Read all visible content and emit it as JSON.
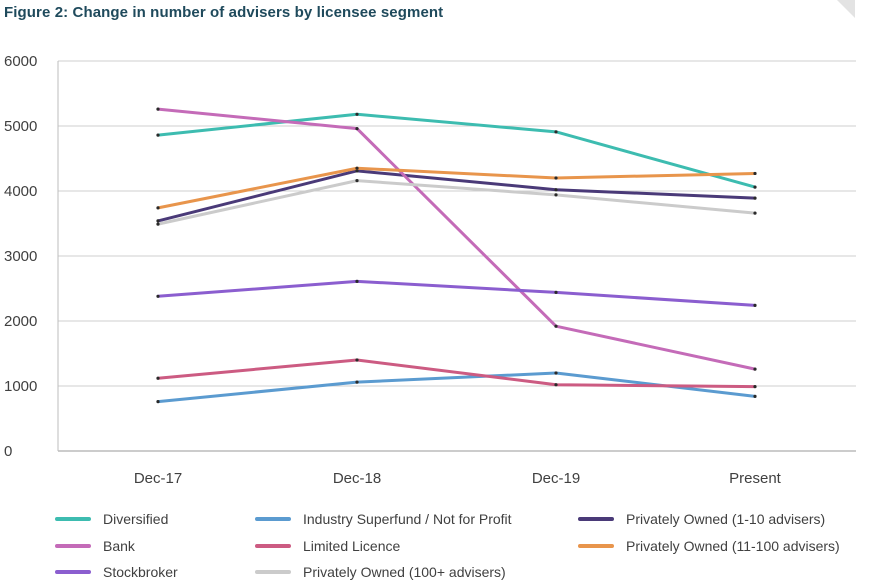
{
  "figure": {
    "title": "Figure 2: Change in number of advisers by licensee segment"
  },
  "chart_data": {
    "type": "line",
    "title": "Figure 2: Change in number of advisers by licensee segment",
    "xlabel": "",
    "ylabel": "",
    "categories": [
      "Dec-17",
      "Dec-18",
      "Dec-19",
      "Present"
    ],
    "ylim": [
      0,
      6000
    ],
    "yticks": [
      0,
      1000,
      2000,
      3000,
      4000,
      5000,
      6000
    ],
    "grid": true,
    "legend_position": "bottom",
    "series": [
      {
        "name": "Diversified",
        "color": "#3dbcb0",
        "values": [
          4860,
          5180,
          4910,
          4060
        ]
      },
      {
        "name": "Industry Superfund / Not for Profit",
        "color": "#5b9bd0",
        "values": [
          760,
          1060,
          1200,
          840
        ]
      },
      {
        "name": "Privately Owned (1-10 advisers)",
        "color": "#4a3a78",
        "values": [
          3540,
          4310,
          4020,
          3890
        ]
      },
      {
        "name": "Bank",
        "color": "#c46bb8",
        "values": [
          5260,
          4960,
          1920,
          1260
        ]
      },
      {
        "name": "Limited Licence",
        "color": "#cc5b82",
        "values": [
          1120,
          1400,
          1020,
          990
        ]
      },
      {
        "name": "Privately Owned  (11-100 advisers)",
        "color": "#e8954c",
        "values": [
          3740,
          4350,
          4200,
          4270
        ]
      },
      {
        "name": "Stockbroker",
        "color": "#8b5ecf",
        "values": [
          2380,
          2610,
          2440,
          2240
        ]
      },
      {
        "name": "Privately Owned  (100+ advisers)",
        "color": "#cbcbcb",
        "values": [
          3490,
          4160,
          3940,
          3660
        ]
      }
    ]
  }
}
